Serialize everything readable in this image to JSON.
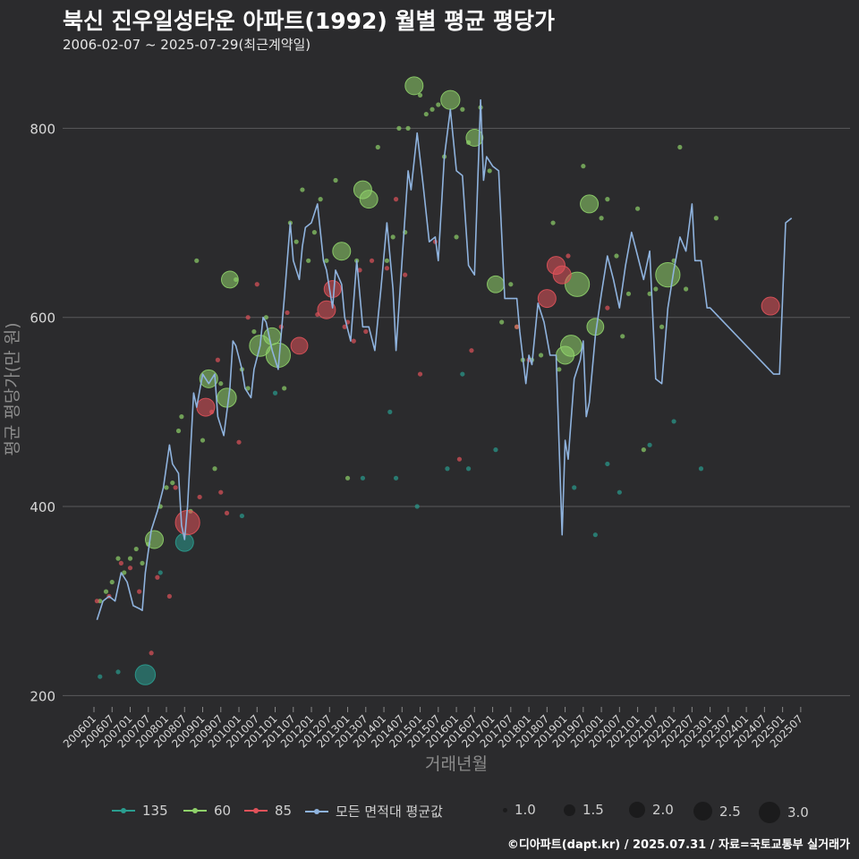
{
  "header": {
    "title": "북신 진우일성타운 아파트(1992) 월별 평균 평당가",
    "subtitle": "2006-02-07 ~ 2025-07-29(최근계약일)"
  },
  "footer": {
    "caption": "©디아파트(dapt.kr) / 2025.07.31 / 자료=국토교통부 실거래가"
  },
  "colors": {
    "background": "#2b2b2d",
    "grid": "#5a5a5c",
    "area_135": "#2a9d8f",
    "area_60": "#8fd16a",
    "area_85": "#e0525a",
    "average_line": "#8fb3de"
  },
  "legend": {
    "series": [
      {
        "key": "135",
        "label": "135",
        "color": "#2a9d8f"
      },
      {
        "key": "60",
        "label": "60",
        "color": "#8fd16a"
      },
      {
        "key": "85",
        "label": "85",
        "color": "#e0525a"
      },
      {
        "key": "avg",
        "label": "모든 면적대 평균값",
        "color": "#8fb3de"
      }
    ],
    "sizes": [
      {
        "value": 1.0,
        "label": "1.0"
      },
      {
        "value": 1.5,
        "label": "1.5"
      },
      {
        "value": 2.0,
        "label": "2.0"
      },
      {
        "value": 2.5,
        "label": "2.5"
      },
      {
        "value": 3.0,
        "label": "3.0"
      }
    ]
  },
  "chart_data": {
    "type": "scatter",
    "title": "북신 진우일성타운 아파트(1992) 월별 평균 평당가",
    "xlabel": "거래년월",
    "ylabel": "평균 평당가(만 원)",
    "ylim": [
      188,
      860
    ],
    "yticks": [
      200,
      400,
      600,
      800
    ],
    "x_start": "2006-01",
    "x_end": "2025-10",
    "xticks": [
      "200601",
      "200607",
      "200701",
      "200707",
      "200801",
      "200807",
      "200901",
      "200907",
      "201001",
      "201007",
      "201101",
      "201107",
      "201201",
      "201207",
      "201301",
      "201307",
      "201401",
      "201407",
      "201501",
      "201507",
      "201601",
      "201607",
      "201701",
      "201707",
      "201801",
      "201807",
      "201901",
      "201907",
      "202001",
      "202007",
      "202101",
      "202107",
      "202201",
      "202207",
      "202301",
      "202307",
      "202401",
      "202407",
      "202501",
      "202507"
    ],
    "grid": "horizontal",
    "average_line": [
      [
        "2006-02",
        280
      ],
      [
        "2006-04",
        300
      ],
      [
        "2006-06",
        305
      ],
      [
        "2006-08",
        300
      ],
      [
        "2006-10",
        330
      ],
      [
        "2006-12",
        320
      ],
      [
        "2007-02",
        295
      ],
      [
        "2007-04",
        292
      ],
      [
        "2007-05",
        290
      ],
      [
        "2007-06",
        330
      ],
      [
        "2007-08",
        375
      ],
      [
        "2007-10",
        395
      ],
      [
        "2007-12",
        420
      ],
      [
        "2008-02",
        465
      ],
      [
        "2008-03",
        445
      ],
      [
        "2008-05",
        435
      ],
      [
        "2008-06",
        380
      ],
      [
        "2008-07",
        365
      ],
      [
        "2008-08",
        400
      ],
      [
        "2008-10",
        520
      ],
      [
        "2008-11",
        505
      ],
      [
        "2009-01",
        540
      ],
      [
        "2009-03",
        530
      ],
      [
        "2009-05",
        540
      ],
      [
        "2009-06",
        495
      ],
      [
        "2009-08",
        475
      ],
      [
        "2009-10",
        525
      ],
      [
        "2009-11",
        575
      ],
      [
        "2009-12",
        570
      ],
      [
        "2010-02",
        545
      ],
      [
        "2010-03",
        525
      ],
      [
        "2010-05",
        515
      ],
      [
        "2010-06",
        545
      ],
      [
        "2010-08",
        570
      ],
      [
        "2010-09",
        600
      ],
      [
        "2010-10",
        595
      ],
      [
        "2010-12",
        565
      ],
      [
        "2011-02",
        545
      ],
      [
        "2011-04",
        620
      ],
      [
        "2011-06",
        700
      ],
      [
        "2011-07",
        660
      ],
      [
        "2011-09",
        640
      ],
      [
        "2011-10",
        675
      ],
      [
        "2011-11",
        695
      ],
      [
        "2012-01",
        700
      ],
      [
        "2012-03",
        720
      ],
      [
        "2012-05",
        660
      ],
      [
        "2012-06",
        650
      ],
      [
        "2012-08",
        610
      ],
      [
        "2012-09",
        650
      ],
      [
        "2012-11",
        635
      ],
      [
        "2012-12",
        600
      ],
      [
        "2013-02",
        575
      ],
      [
        "2013-04",
        660
      ],
      [
        "2013-06",
        590
      ],
      [
        "2013-08",
        590
      ],
      [
        "2013-10",
        565
      ],
      [
        "2013-12",
        630
      ],
      [
        "2014-02",
        700
      ],
      [
        "2014-04",
        630
      ],
      [
        "2014-05",
        565
      ],
      [
        "2014-07",
        660
      ],
      [
        "2014-09",
        755
      ],
      [
        "2014-10",
        735
      ],
      [
        "2014-12",
        795
      ],
      [
        "2015-02",
        740
      ],
      [
        "2015-04",
        680
      ],
      [
        "2015-06",
        685
      ],
      [
        "2015-07",
        660
      ],
      [
        "2015-09",
        770
      ],
      [
        "2015-11",
        820
      ],
      [
        "2016-01",
        755
      ],
      [
        "2016-03",
        750
      ],
      [
        "2016-05",
        655
      ],
      [
        "2016-07",
        645
      ],
      [
        "2016-09",
        830
      ],
      [
        "2016-10",
        745
      ],
      [
        "2016-11",
        770
      ],
      [
        "2017-01",
        760
      ],
      [
        "2017-03",
        755
      ],
      [
        "2017-05",
        620
      ],
      [
        "2017-07",
        620
      ],
      [
        "2017-09",
        620
      ],
      [
        "2017-10",
        585
      ],
      [
        "2017-12",
        530
      ],
      [
        "2018-01",
        560
      ],
      [
        "2018-02",
        550
      ],
      [
        "2018-04",
        615
      ],
      [
        "2018-06",
        595
      ],
      [
        "2018-08",
        560
      ],
      [
        "2018-10",
        560
      ],
      [
        "2018-12",
        370
      ],
      [
        "2019-01",
        470
      ],
      [
        "2019-02",
        450
      ],
      [
        "2019-04",
        535
      ],
      [
        "2019-06",
        555
      ],
      [
        "2019-07",
        575
      ],
      [
        "2019-08",
        495
      ],
      [
        "2019-09",
        510
      ],
      [
        "2019-11",
        580
      ],
      [
        "2020-01",
        625
      ],
      [
        "2020-03",
        665
      ],
      [
        "2020-05",
        640
      ],
      [
        "2020-07",
        610
      ],
      [
        "2020-09",
        655
      ],
      [
        "2020-11",
        690
      ],
      [
        "2021-01",
        665
      ],
      [
        "2021-03",
        640
      ],
      [
        "2021-05",
        670
      ],
      [
        "2021-07",
        535
      ],
      [
        "2021-09",
        530
      ],
      [
        "2021-11",
        610
      ],
      [
        "2022-01",
        650
      ],
      [
        "2022-03",
        685
      ],
      [
        "2022-05",
        670
      ],
      [
        "2022-07",
        720
      ],
      [
        "2022-08",
        660
      ],
      [
        "2022-10",
        660
      ],
      [
        "2022-12",
        610
      ],
      [
        "2023-01",
        610
      ],
      [
        "2024-10",
        540
      ],
      [
        "2024-12",
        540
      ],
      [
        "2025-02",
        700
      ],
      [
        "2025-04",
        705
      ]
    ],
    "scatter": {
      "135": [
        [
          "2006-03",
          220
        ],
        [
          "2006-09",
          225
        ],
        [
          "2007-06",
          222,
          2.2
        ],
        [
          "2007-11",
          330
        ],
        [
          "2008-07",
          362,
          2.0
        ],
        [
          "2010-02",
          390
        ],
        [
          "2011-01",
          520
        ],
        [
          "2013-06",
          430
        ],
        [
          "2014-03",
          500
        ],
        [
          "2014-05",
          430
        ],
        [
          "2014-12",
          400
        ],
        [
          "2015-10",
          440
        ],
        [
          "2016-03",
          540
        ],
        [
          "2016-05",
          440
        ],
        [
          "2017-02",
          460
        ],
        [
          "2019-04",
          420
        ],
        [
          "2019-11",
          370
        ],
        [
          "2020-03",
          445
        ],
        [
          "2020-07",
          415
        ],
        [
          "2021-05",
          465
        ],
        [
          "2022-01",
          490
        ],
        [
          "2022-10",
          440
        ]
      ],
      "60": [
        [
          "2006-03",
          300
        ],
        [
          "2006-05",
          310
        ],
        [
          "2006-07",
          320
        ],
        [
          "2006-09",
          345
        ],
        [
          "2006-11",
          330
        ],
        [
          "2007-01",
          345
        ],
        [
          "2007-03",
          355
        ],
        [
          "2007-05",
          340
        ],
        [
          "2007-07",
          360
        ],
        [
          "2007-09",
          365,
          2.0
        ],
        [
          "2007-11",
          400
        ],
        [
          "2008-01",
          420
        ],
        [
          "2008-03",
          425
        ],
        [
          "2008-05",
          480
        ],
        [
          "2008-06",
          495
        ],
        [
          "2008-09",
          395
        ],
        [
          "2008-11",
          660
        ],
        [
          "2009-01",
          470
        ],
        [
          "2009-03",
          535,
          2.0
        ],
        [
          "2009-05",
          440
        ],
        [
          "2009-07",
          530
        ],
        [
          "2009-09",
          515,
          2.1
        ],
        [
          "2009-10",
          640,
          1.9
        ],
        [
          "2009-12",
          640
        ],
        [
          "2010-02",
          545
        ],
        [
          "2010-04",
          525
        ],
        [
          "2010-06",
          585
        ],
        [
          "2010-08",
          570,
          2.3
        ],
        [
          "2010-10",
          600
        ],
        [
          "2010-12",
          580,
          1.9
        ],
        [
          "2011-02",
          560,
          2.6
        ],
        [
          "2011-04",
          525
        ],
        [
          "2011-06",
          700
        ],
        [
          "2011-08",
          680
        ],
        [
          "2011-10",
          735
        ],
        [
          "2011-12",
          660
        ],
        [
          "2012-02",
          690
        ],
        [
          "2012-04",
          725
        ],
        [
          "2012-06",
          660
        ],
        [
          "2012-09",
          745
        ],
        [
          "2012-11",
          670,
          2.0
        ],
        [
          "2013-01",
          430
        ],
        [
          "2013-04",
          660
        ],
        [
          "2013-06",
          735,
          2.0
        ],
        [
          "2013-08",
          725,
          2.0
        ],
        [
          "2013-11",
          780
        ],
        [
          "2014-02",
          660
        ],
        [
          "2014-04",
          685
        ],
        [
          "2014-06",
          800
        ],
        [
          "2014-08",
          690
        ],
        [
          "2014-09",
          800
        ],
        [
          "2014-11",
          845,
          2.0
        ],
        [
          "2015-01",
          835
        ],
        [
          "2015-03",
          815
        ],
        [
          "2015-05",
          820
        ],
        [
          "2015-07",
          825
        ],
        [
          "2015-09",
          770
        ],
        [
          "2015-11",
          830,
          2.1
        ],
        [
          "2016-01",
          685
        ],
        [
          "2016-03",
          820
        ],
        [
          "2016-05",
          785
        ],
        [
          "2016-07",
          790,
          1.9
        ],
        [
          "2016-09",
          822
        ],
        [
          "2016-12",
          755
        ],
        [
          "2017-02",
          635,
          1.9
        ],
        [
          "2017-04",
          595
        ],
        [
          "2017-07",
          635
        ],
        [
          "2017-09",
          590
        ],
        [
          "2017-11",
          555
        ],
        [
          "2018-02",
          555
        ],
        [
          "2018-05",
          560
        ],
        [
          "2018-09",
          700
        ],
        [
          "2018-11",
          545
        ],
        [
          "2019-01",
          560,
          2.0
        ],
        [
          "2019-03",
          570,
          2.3
        ],
        [
          "2019-05",
          635,
          2.6
        ],
        [
          "2019-07",
          760
        ],
        [
          "2019-09",
          720,
          2.0
        ],
        [
          "2019-11",
          590,
          1.9
        ],
        [
          "2020-01",
          705
        ],
        [
          "2020-03",
          725
        ],
        [
          "2020-06",
          665
        ],
        [
          "2020-08",
          580
        ],
        [
          "2020-10",
          625
        ],
        [
          "2021-01",
          715
        ],
        [
          "2021-03",
          460
        ],
        [
          "2021-05",
          625
        ],
        [
          "2021-07",
          630
        ],
        [
          "2021-09",
          590
        ],
        [
          "2021-11",
          645,
          2.6
        ],
        [
          "2022-01",
          660
        ],
        [
          "2022-03",
          780
        ],
        [
          "2022-05",
          630
        ],
        [
          "2023-03",
          705
        ]
      ],
      "85": [
        [
          "2006-02",
          300
        ],
        [
          "2006-06",
          305
        ],
        [
          "2006-10",
          340
        ],
        [
          "2007-01",
          335
        ],
        [
          "2007-04",
          310
        ],
        [
          "2007-08",
          245
        ],
        [
          "2007-10",
          325
        ],
        [
          "2008-02",
          305
        ],
        [
          "2008-04",
          420
        ],
        [
          "2008-08",
          383,
          2.6
        ],
        [
          "2008-12",
          410
        ],
        [
          "2009-02",
          505,
          2.0
        ],
        [
          "2009-04",
          500
        ],
        [
          "2009-06",
          555
        ],
        [
          "2009-07",
          415
        ],
        [
          "2009-09",
          393
        ],
        [
          "2010-01",
          468
        ],
        [
          "2010-04",
          600
        ],
        [
          "2010-07",
          635
        ],
        [
          "2011-03",
          590
        ],
        [
          "2011-05",
          605
        ],
        [
          "2011-09",
          570,
          1.9
        ],
        [
          "2012-03",
          603
        ],
        [
          "2012-06",
          608,
          2.0
        ],
        [
          "2012-08",
          630,
          1.9
        ],
        [
          "2012-12",
          590
        ],
        [
          "2013-01",
          595
        ],
        [
          "2013-03",
          575
        ],
        [
          "2013-05",
          650
        ],
        [
          "2013-07",
          585
        ],
        [
          "2013-09",
          660
        ],
        [
          "2014-02",
          652
        ],
        [
          "2014-05",
          725
        ],
        [
          "2014-08",
          645
        ],
        [
          "2015-01",
          540
        ],
        [
          "2015-06",
          680
        ],
        [
          "2016-02",
          450
        ],
        [
          "2016-06",
          565
        ],
        [
          "2017-09",
          590
        ],
        [
          "2018-01",
          555
        ],
        [
          "2018-07",
          620,
          2.0
        ],
        [
          "2018-10",
          655,
          2.0
        ],
        [
          "2018-12",
          645,
          2.0
        ],
        [
          "2019-02",
          665
        ],
        [
          "2020-03",
          610
        ],
        [
          "2024-09",
          612,
          2.0
        ]
      ]
    },
    "legend_position": "bottom"
  }
}
